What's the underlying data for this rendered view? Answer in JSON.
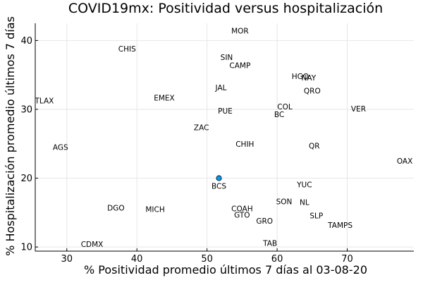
{
  "chart_data": {
    "type": "scatter",
    "title": "COVID19mx: Positividad versus hospitalización",
    "xlabel": "% Positividad promedio últimos 7 días al 03-08-20",
    "ylabel": "% Hospitalización promedio últimos 7 días",
    "xlim": [
      25.5,
      79.5
    ],
    "ylim": [
      9.4,
      42.5
    ],
    "xticks": [
      30,
      40,
      50,
      60,
      70
    ],
    "yticks": [
      10,
      20,
      30,
      40
    ],
    "grid": true,
    "legend": "none",
    "highlight": {
      "label": "BCS",
      "x": 51.7,
      "y": 20.0,
      "color": "#009AFA"
    },
    "labels": [
      {
        "label": "MOR",
        "x": 54.7,
        "y": 41.4
      },
      {
        "label": "CHIS",
        "x": 38.6,
        "y": 38.8
      },
      {
        "label": "SIN",
        "x": 52.8,
        "y": 37.6
      },
      {
        "label": "CAMP",
        "x": 54.7,
        "y": 36.4
      },
      {
        "label": "HGO",
        "x": 63.3,
        "y": 34.8
      },
      {
        "label": "NAY",
        "x": 64.5,
        "y": 34.6
      },
      {
        "label": "JAL",
        "x": 52.0,
        "y": 33.2
      },
      {
        "label": "QRO",
        "x": 65.0,
        "y": 32.7
      },
      {
        "label": "EMEX",
        "x": 43.9,
        "y": 31.7
      },
      {
        "label": "TLAX",
        "x": 26.8,
        "y": 31.3
      },
      {
        "label": "COL",
        "x": 61.1,
        "y": 30.4
      },
      {
        "label": "VER",
        "x": 71.6,
        "y": 30.1
      },
      {
        "label": "PUE",
        "x": 52.6,
        "y": 29.8
      },
      {
        "label": "BC",
        "x": 60.3,
        "y": 29.3
      },
      {
        "label": "ZAC",
        "x": 49.2,
        "y": 27.4
      },
      {
        "label": "CHIH",
        "x": 55.4,
        "y": 25.0
      },
      {
        "label": "AGS",
        "x": 29.1,
        "y": 24.5
      },
      {
        "label": "QR",
        "x": 65.3,
        "y": 24.7
      },
      {
        "label": "OAX",
        "x": 78.2,
        "y": 22.5
      },
      {
        "label": "BCS",
        "x": 51.7,
        "y": 20.0
      },
      {
        "label": "YUC",
        "x": 63.9,
        "y": 19.1
      },
      {
        "label": "SON",
        "x": 61.0,
        "y": 16.6
      },
      {
        "label": "NL",
        "x": 63.9,
        "y": 16.5
      },
      {
        "label": "DGO",
        "x": 37.0,
        "y": 15.7
      },
      {
        "label": "MICH",
        "x": 42.6,
        "y": 15.5
      },
      {
        "label": "COAH",
        "x": 55.0,
        "y": 15.6
      },
      {
        "label": "GTO",
        "x": 55.0,
        "y": 14.7
      },
      {
        "label": "SLP",
        "x": 65.6,
        "y": 14.6
      },
      {
        "label": "GRO",
        "x": 58.2,
        "y": 13.8
      },
      {
        "label": "TAMPS",
        "x": 69.0,
        "y": 13.2
      },
      {
        "label": "CDMX",
        "x": 33.6,
        "y": 10.4
      },
      {
        "label": "TAB",
        "x": 59.0,
        "y": 10.6
      }
    ]
  }
}
